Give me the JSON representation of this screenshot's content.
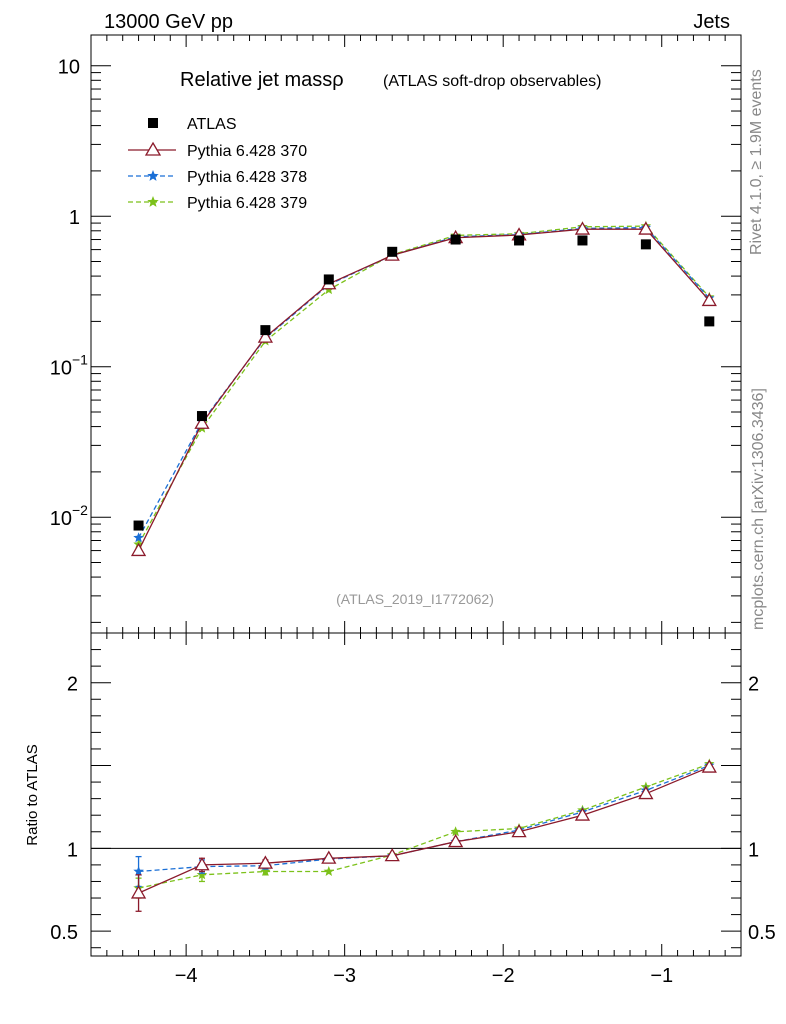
{
  "header": {
    "beam": "13000 GeV pp",
    "category": "Jets",
    "side_version": "Rivet 4.1.0, ≥ 1.9M events",
    "side_site": "mcplots.cern.ch [arXiv:1306.3436]"
  },
  "chart_data": {
    "type": "line",
    "title_main": "Relative jet massρ",
    "title_sub": "(ATLAS soft-drop observables)",
    "analysis_label": "(ATLAS_2019_I1772062)",
    "xlabel": "",
    "ylabel_ratio": "Ratio to ATLAS",
    "xlim": [
      -4.6,
      -0.5
    ],
    "ylim_main": [
      0.0017,
      16
    ],
    "ylim_ratio": [
      0.35,
      2.3
    ],
    "x_ticks": [
      -4,
      -3,
      -2,
      -1
    ],
    "x_tick_labels": [
      "−4",
      "−3",
      "−2",
      "−1"
    ],
    "main_ticks": [
      {
        "value": 10,
        "base": "10",
        "exp": ""
      },
      {
        "value": 1,
        "base": "1",
        "exp": ""
      },
      {
        "value": 0.1,
        "base": "10",
        "exp": "−1"
      },
      {
        "value": 0.01,
        "base": "10",
        "exp": "−2"
      }
    ],
    "ratio_ticks": [
      {
        "value": 2,
        "label": "2"
      },
      {
        "value": 1,
        "label": "1"
      },
      {
        "value": 0.5,
        "label": "0.5"
      }
    ],
    "x": [
      -4.3,
      -3.9,
      -3.5,
      -3.1,
      -2.7,
      -2.3,
      -1.9,
      -1.5,
      -1.1,
      -0.7
    ],
    "data": {
      "name": "ATLAS",
      "values": [
        0.0088,
        0.047,
        0.175,
        0.38,
        0.58,
        0.7,
        0.69,
        0.69,
        0.65,
        0.2
      ]
    },
    "series": [
      {
        "name": "Pythia 6.428 370",
        "color": "#8b1a2b",
        "dash": "",
        "marker": "triangle",
        "values": [
          0.006,
          0.042,
          0.157,
          0.355,
          0.55,
          0.72,
          0.75,
          0.82,
          0.82,
          0.275
        ],
        "ratio": [
          0.73,
          0.9,
          0.91,
          0.94,
          0.955,
          1.04,
          1.1,
          1.2,
          1.33,
          1.49
        ],
        "ratio_err": [
          0.11,
          0.04,
          0.02,
          0.01,
          0.01,
          0.01,
          0.01,
          0.01,
          0.01,
          0.01
        ]
      },
      {
        "name": "Pythia 6.428 378",
        "color": "#1a6fd6",
        "dash": "5,3",
        "marker": "star",
        "values": [
          0.0073,
          0.043,
          0.155,
          0.35,
          0.55,
          0.73,
          0.755,
          0.83,
          0.84,
          0.285
        ],
        "ratio": [
          0.86,
          0.89,
          0.895,
          0.935,
          0.955,
          1.04,
          1.11,
          1.22,
          1.35,
          1.5
        ],
        "ratio_err": [
          0.09,
          0.04,
          0.02,
          0.01,
          0.01,
          0.01,
          0.01,
          0.01,
          0.01,
          0.01
        ]
      },
      {
        "name": "Pythia 6.428 379",
        "color": "#7cc11a",
        "dash": "5,3",
        "marker": "star",
        "values": [
          0.0066,
          0.039,
          0.148,
          0.325,
          0.555,
          0.745,
          0.765,
          0.85,
          0.86,
          0.29
        ],
        "ratio": [
          0.76,
          0.84,
          0.86,
          0.86,
          0.96,
          1.1,
          1.12,
          1.23,
          1.37,
          1.51
        ],
        "ratio_err": [
          0.06,
          0.04,
          0.02,
          0.01,
          0.01,
          0.01,
          0.01,
          0.01,
          0.01,
          0.01
        ]
      }
    ]
  }
}
